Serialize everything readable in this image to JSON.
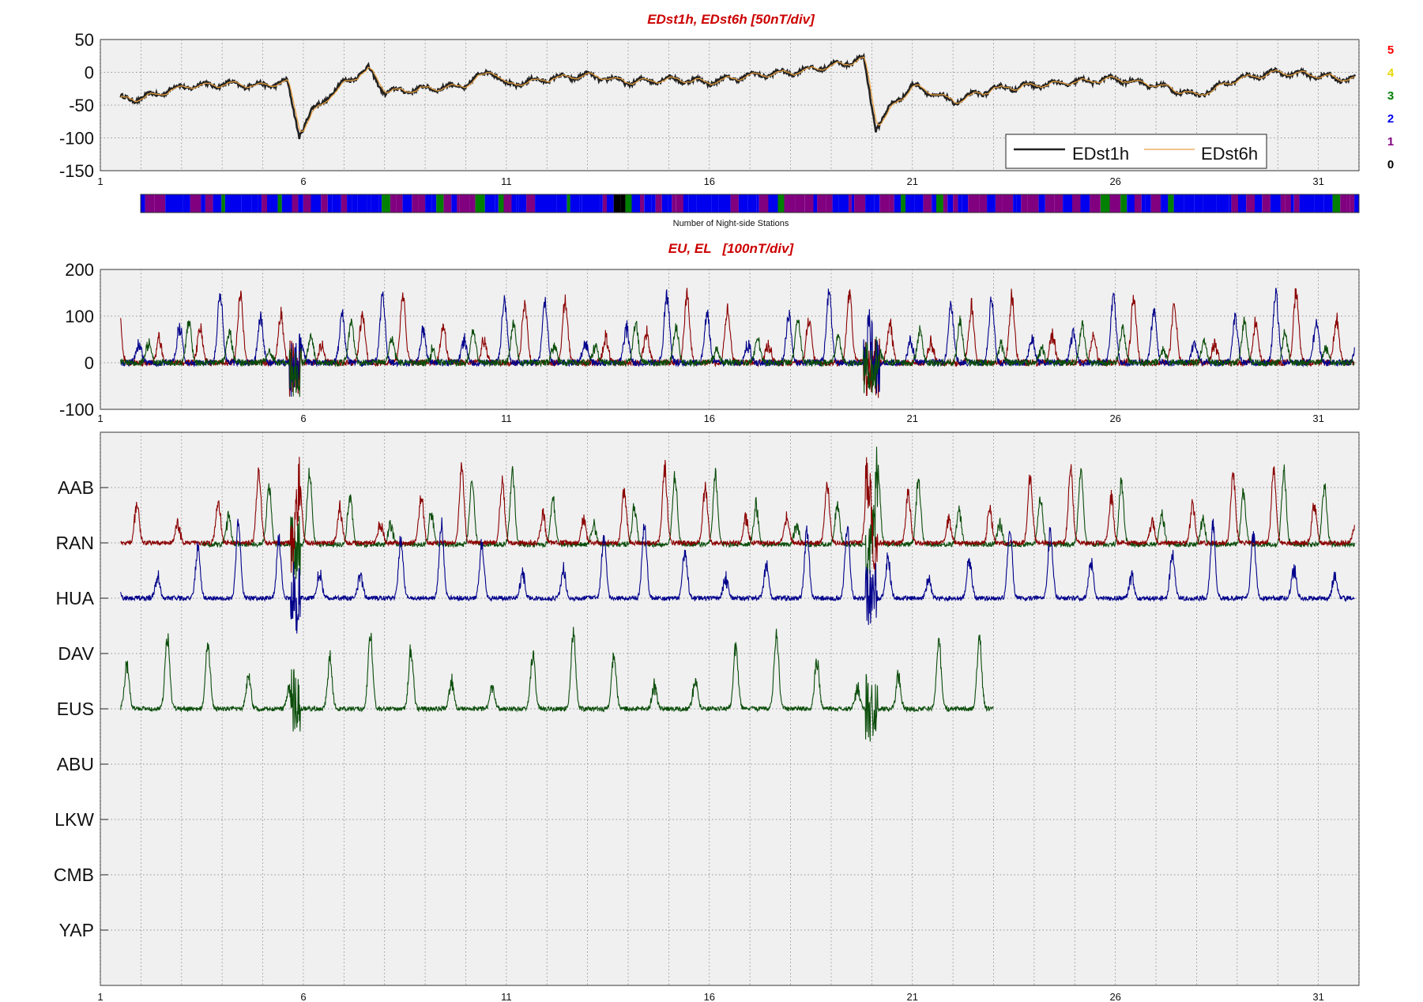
{
  "chart_data": [
    {
      "type": "line",
      "title": "EDst1h, EDst6h [50nT/div]",
      "ylim": [
        -150,
        50
      ],
      "yticks": [
        50,
        0,
        -50,
        -100,
        -150
      ],
      "xlim": [
        1,
        32
      ],
      "xticks": [
        1,
        6,
        11,
        16,
        21,
        26,
        31
      ],
      "grid": true,
      "legend_position": "bottom-right",
      "series": [
        {
          "name": "EDst1h",
          "color": "#222222"
        },
        {
          "name": "EDst6h",
          "color": "#e8a040"
        }
      ],
      "key_points": [
        [
          2,
          -40
        ],
        [
          3,
          -22
        ],
        [
          4,
          -18
        ],
        [
          5,
          -20
        ],
        [
          5.6,
          -15
        ],
        [
          5.9,
          -95
        ],
        [
          6.2,
          -60
        ],
        [
          7,
          -15
        ],
        [
          7.6,
          5
        ],
        [
          8,
          -30
        ],
        [
          9,
          -25
        ],
        [
          10,
          -20
        ],
        [
          10.6,
          5
        ],
        [
          11,
          -20
        ],
        [
          12,
          -10
        ],
        [
          13,
          -5
        ],
        [
          14,
          -15
        ],
        [
          15,
          -10
        ],
        [
          16,
          -15
        ],
        [
          17,
          -5
        ],
        [
          18,
          0
        ],
        [
          19,
          10
        ],
        [
          19.8,
          20
        ],
        [
          20.1,
          -85
        ],
        [
          20.5,
          -50
        ],
        [
          21,
          -20
        ],
        [
          22,
          -45
        ],
        [
          23,
          -25
        ],
        [
          24,
          -20
        ],
        [
          25,
          -15
        ],
        [
          26,
          -10
        ],
        [
          27,
          -20
        ],
        [
          28,
          -35
        ],
        [
          29,
          -10
        ],
        [
          30,
          0
        ],
        [
          31,
          -5
        ],
        [
          31.5,
          -10
        ]
      ]
    },
    {
      "type": "heatmap",
      "xlabel": "Number of Night-side Stations",
      "scale": [
        {
          "label": "5",
          "color": "#ff0000"
        },
        {
          "label": "4",
          "color": "#e8d800"
        },
        {
          "label": "3",
          "color": "#008000"
        },
        {
          "label": "2",
          "color": "#0000ee"
        },
        {
          "label": "1",
          "color": "#800080"
        },
        {
          "label": "0",
          "color": "#000000"
        }
      ]
    },
    {
      "type": "line",
      "title": "EU, EL   [100nT/div]",
      "ylim": [
        -100,
        200
      ],
      "yticks": [
        200,
        100,
        0,
        -100
      ],
      "xlim": [
        1,
        32
      ],
      "xticks": [
        1,
        6,
        11,
        16,
        21,
        26,
        31
      ],
      "grid": true,
      "series": [
        {
          "color": "#8b0000"
        },
        {
          "color": "#00008b"
        },
        {
          "color": "#0b4d0b"
        }
      ]
    },
    {
      "type": "line",
      "xlim": [
        1,
        32
      ],
      "xticks": [
        1,
        6,
        11,
        16,
        21,
        26,
        31
      ],
      "grid": true,
      "stations": [
        "AAB",
        "RAN",
        "HUA",
        "DAV",
        "EUS",
        "ABU",
        "LKW",
        "CMB",
        "YAP"
      ],
      "series": [
        {
          "station": "AAB",
          "color": "#0b4d0b",
          "x_range": [
            3.5,
            32
          ]
        },
        {
          "station": "RAN",
          "color": "#8b0000",
          "x_range": [
            1,
            32
          ]
        },
        {
          "station": "HUA",
          "color": "#00008b",
          "x_range": [
            1,
            32
          ]
        },
        {
          "station": "EUS",
          "color": "#0b4d0b",
          "x_range": [
            1,
            23
          ]
        }
      ]
    }
  ]
}
